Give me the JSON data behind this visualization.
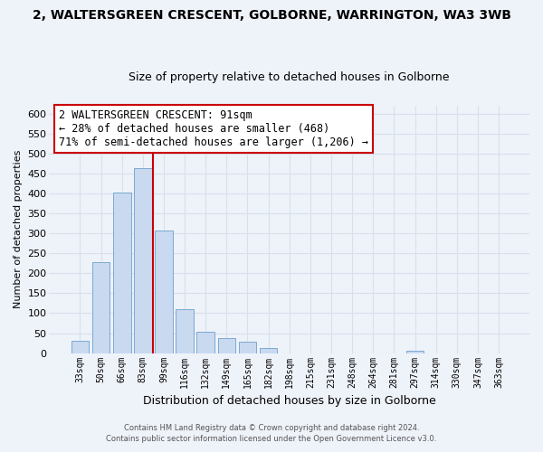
{
  "title": "2, WALTERSGREEN CRESCENT, GOLBORNE, WARRINGTON, WA3 3WB",
  "subtitle": "Size of property relative to detached houses in Golborne",
  "xlabel": "Distribution of detached houses by size in Golborne",
  "ylabel": "Number of detached properties",
  "bar_labels": [
    "33sqm",
    "50sqm",
    "66sqm",
    "83sqm",
    "99sqm",
    "116sqm",
    "132sqm",
    "149sqm",
    "165sqm",
    "182sqm",
    "198sqm",
    "215sqm",
    "231sqm",
    "248sqm",
    "264sqm",
    "281sqm",
    "297sqm",
    "314sqm",
    "330sqm",
    "347sqm",
    "363sqm"
  ],
  "bar_values": [
    30,
    228,
    403,
    463,
    307,
    110,
    54,
    37,
    29,
    13,
    0,
    0,
    0,
    0,
    0,
    0,
    5,
    0,
    0,
    0,
    0
  ],
  "bar_color": "#c9d9f0",
  "bar_edge_color": "#7aaad0",
  "vline_color": "#cc0000",
  "vline_bar_index": 3.5,
  "ylim": [
    0,
    620
  ],
  "yticks": [
    0,
    50,
    100,
    150,
    200,
    250,
    300,
    350,
    400,
    450,
    500,
    550,
    600
  ],
  "annotation_line1": "2 WALTERSGREEN CRESCENT: 91sqm",
  "annotation_line2": "← 28% of detached houses are smaller (468)",
  "annotation_line3": "71% of semi-detached houses are larger (1,206) →",
  "annotation_box_color": "#ffffff",
  "annotation_box_edge": "#cc0000",
  "footer_line1": "Contains HM Land Registry data © Crown copyright and database right 2024.",
  "footer_line2": "Contains public sector information licensed under the Open Government Licence v3.0.",
  "bg_color": "#eef2f9",
  "grid_color": "#d8e0ed",
  "title_fontsize": 10,
  "subtitle_fontsize": 9
}
